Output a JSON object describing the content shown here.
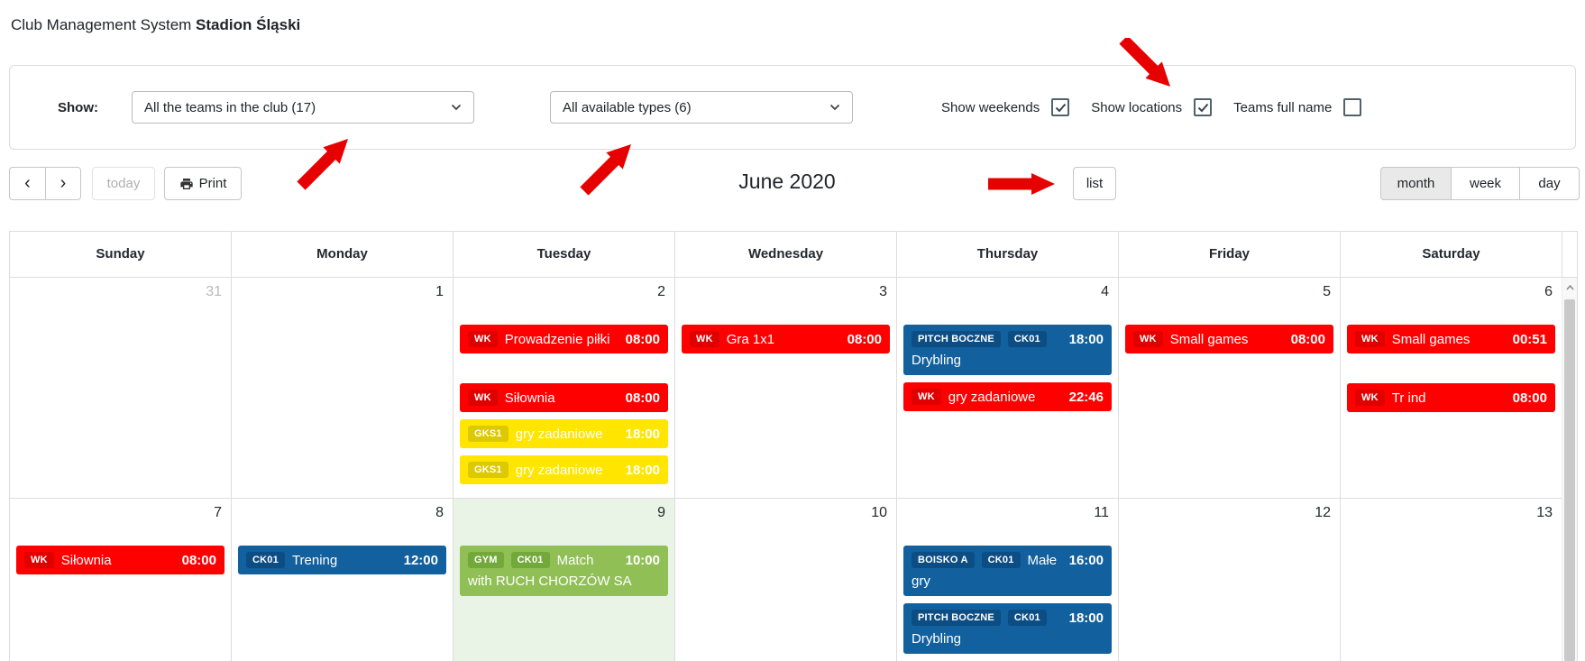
{
  "app": {
    "title_prefix": "Club Management System ",
    "title_bold": "Stadion Śląski"
  },
  "filters": {
    "show_label": "Show:",
    "teams_dropdown": {
      "value": "All the teams in the club (17)"
    },
    "types_dropdown": {
      "value": "All available types (6)"
    },
    "checkboxes": [
      {
        "label": "Show weekends",
        "checked": true
      },
      {
        "label": "Show locations",
        "checked": true
      },
      {
        "label": "Teams full name",
        "checked": false
      }
    ]
  },
  "toolbar": {
    "prev": "‹",
    "next": "›",
    "today": "today",
    "print": "Print",
    "title": "June 2020",
    "list": "list",
    "views": [
      {
        "label": "month",
        "active": true
      },
      {
        "label": "week",
        "active": false
      },
      {
        "label": "day",
        "active": false
      }
    ]
  },
  "calendar": {
    "day_headers": [
      "Sunday",
      "Monday",
      "Tuesday",
      "Wednesday",
      "Thursday",
      "Friday",
      "Saturday"
    ],
    "weeks": [
      {
        "days": [
          {
            "num": "31",
            "other_month": true,
            "events": []
          },
          {
            "num": "1",
            "events": []
          },
          {
            "num": "2",
            "events": [
              {
                "color": "red",
                "badges": [
                  "WK"
                ],
                "title": "Prowadzenie piłki",
                "time": "08:00"
              },
              {
                "color": "red",
                "badges": [
                  "WK"
                ],
                "title": "Siłownia",
                "time": "08:00",
                "gap": true
              },
              {
                "color": "yellow",
                "badges": [
                  "GKS1"
                ],
                "title": "gry zadaniowe",
                "time": "18:00"
              },
              {
                "color": "yellow",
                "badges": [
                  "GKS1"
                ],
                "title": "gry zadaniowe",
                "time": "18:00"
              }
            ]
          },
          {
            "num": "3",
            "events": [
              {
                "color": "red",
                "badges": [
                  "WK"
                ],
                "title": "Gra 1x1",
                "time": "08:00"
              }
            ]
          },
          {
            "num": "4",
            "events": [
              {
                "color": "blue",
                "badges": [
                  "PITCH BOCZNE",
                  "CK01"
                ],
                "title": "",
                "time": "18:00",
                "line2": "Drybling"
              },
              {
                "color": "red",
                "badges": [
                  "WK"
                ],
                "title": "gry zadaniowe",
                "time": "22:46"
              }
            ]
          },
          {
            "num": "5",
            "events": [
              {
                "color": "red",
                "badges": [
                  "WK"
                ],
                "title": "Small games",
                "time": "08:00"
              }
            ]
          },
          {
            "num": "6",
            "events": [
              {
                "color": "red",
                "badges": [
                  "WK"
                ],
                "title": "Small games",
                "time": "00:51"
              },
              {
                "color": "red",
                "badges": [
                  "WK"
                ],
                "title": "Tr ind",
                "time": "08:00",
                "gap": true
              }
            ]
          }
        ]
      },
      {
        "days": [
          {
            "num": "7",
            "events": [
              {
                "color": "red",
                "badges": [
                  "WK"
                ],
                "title": "Siłownia",
                "time": "08:00"
              }
            ]
          },
          {
            "num": "8",
            "events": [
              {
                "color": "blue",
                "badges": [
                  "CK01"
                ],
                "title": "Trening",
                "time": "12:00"
              }
            ]
          },
          {
            "num": "9",
            "today": true,
            "events": [
              {
                "color": "green",
                "badges": [
                  "GYM",
                  "CK01"
                ],
                "title": "Match",
                "time": "10:00",
                "line2": "with RUCH CHORZÓW SA"
              }
            ]
          },
          {
            "num": "10",
            "events": []
          },
          {
            "num": "11",
            "events": [
              {
                "color": "blue",
                "badges": [
                  "BOISKO A",
                  "CK01"
                ],
                "title": "Małe",
                "time": "16:00",
                "line2": "gry"
              },
              {
                "color": "blue",
                "badges": [
                  "PITCH BOCZNE",
                  "CK01"
                ],
                "title": "",
                "time": "18:00",
                "line2": "Drybling"
              }
            ]
          },
          {
            "num": "12",
            "events": []
          },
          {
            "num": "13",
            "events": []
          }
        ]
      }
    ]
  },
  "annotations": {
    "arrow_color": "#e60000",
    "arrows": [
      {
        "target": "teams-dropdown",
        "direction": "up-right"
      },
      {
        "target": "types-dropdown",
        "direction": "up-right"
      },
      {
        "target": "show-locations-checkbox",
        "direction": "down-right"
      },
      {
        "target": "list-button",
        "direction": "right"
      }
    ]
  },
  "colors": {
    "event_red": "#ff0000",
    "event_yellow": "#ffe500",
    "event_blue": "#12609e",
    "event_green": "#90bf55",
    "today_bg": "#eaf4e6"
  }
}
